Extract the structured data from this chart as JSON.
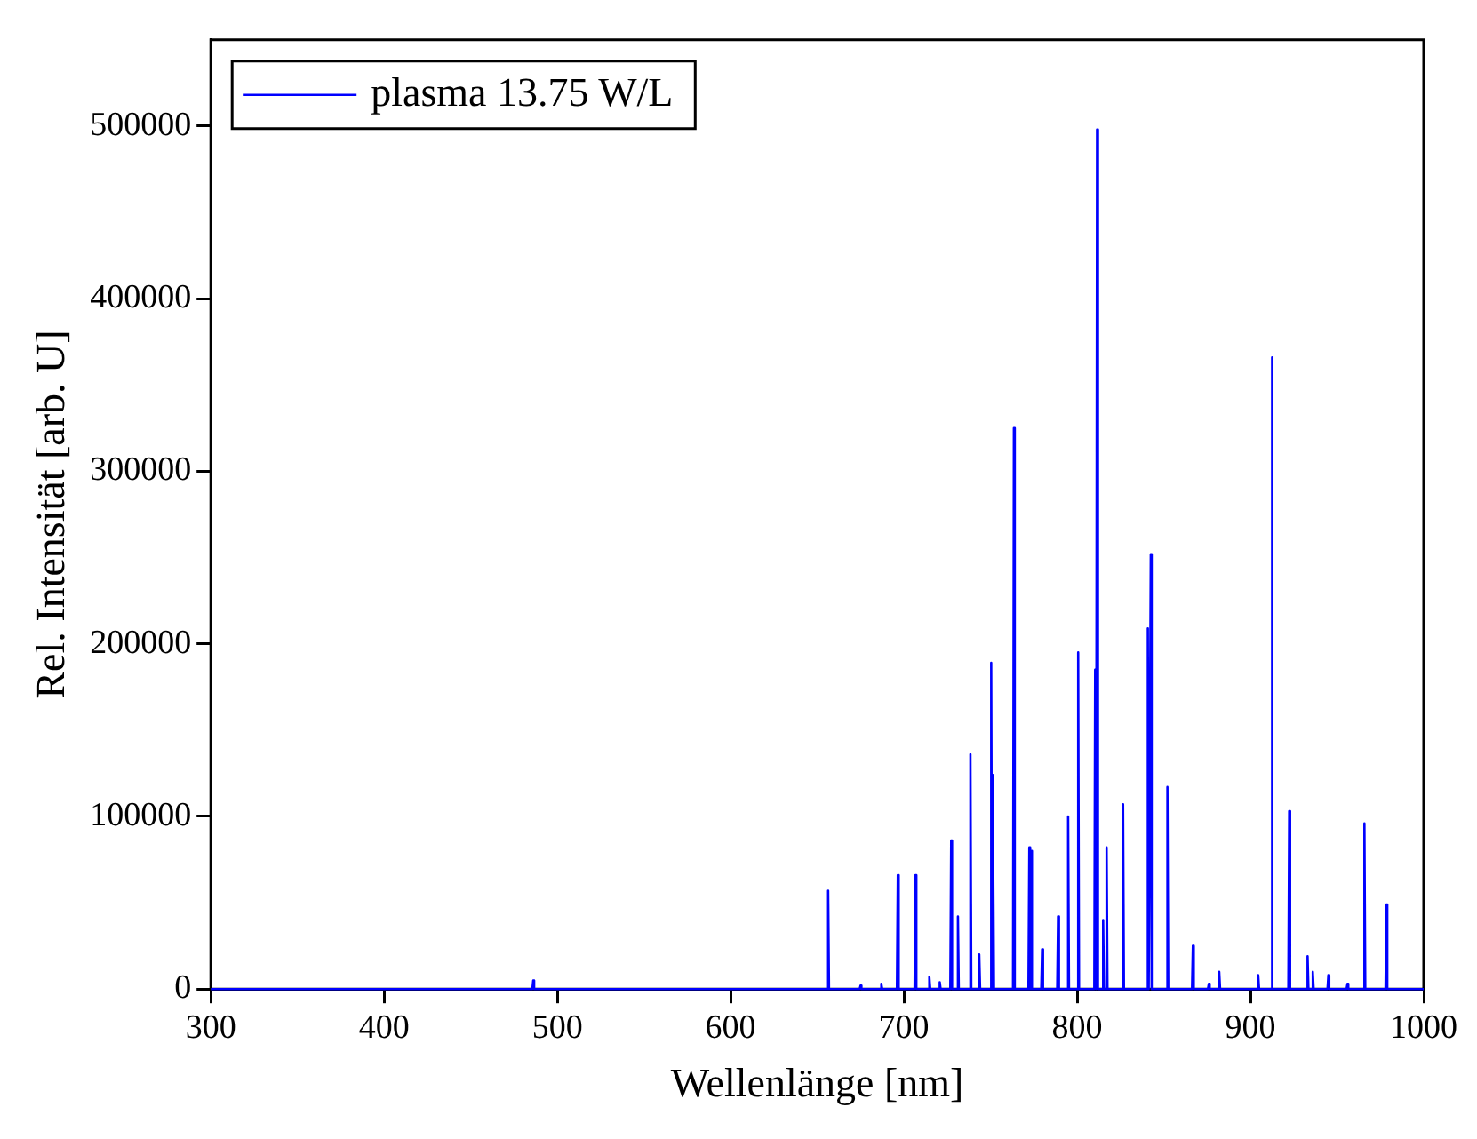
{
  "chart_data": {
    "type": "line",
    "xlabel": "Wellenlänge [nm]",
    "ylabel": "Rel. Intensität [arb. U]",
    "xlim": [
      300,
      1000
    ],
    "xticks": [
      300,
      400,
      500,
      600,
      700,
      800,
      900,
      1000
    ],
    "ylim": [
      0,
      550000
    ],
    "yticks": [
      0,
      100000,
      200000,
      300000,
      400000,
      500000
    ],
    "legend": "top left",
    "grid": false,
    "marker": "none",
    "line_style": "solid",
    "series": [
      {
        "name": "plasma 13.75 W/L",
        "color": "#0000ff",
        "x": [
          300,
          485.6,
          486.1,
          486.6,
          655.8,
          656.3,
          656.8,
          674.5,
          675,
          675.5,
          686.5,
          687,
          687.5,
          696,
          696.5,
          697,
          706.2,
          706.7,
          707.2,
          714.2,
          714.7,
          715.2,
          720.2,
          720.7,
          721.2,
          726.8,
          727.3,
          727.8,
          730.7,
          731.2,
          731.7,
          737.9,
          738.4,
          738.9,
          743,
          743.5,
          744,
          749.9,
          750.4,
          750.9,
          751,
          751.5,
          752,
          763,
          763.5,
          764,
          771.9,
          772.4,
          772.9,
          773.4,
          773.9,
          779.3,
          779.8,
          780.3,
          788.5,
          789,
          789.5,
          794.3,
          794.8,
          795.3,
          800.1,
          800.6,
          801.1,
          809.9,
          810.4,
          810.9,
          811,
          811.5,
          812,
          814.5,
          815,
          815.5,
          816.5,
          817,
          817.5,
          826,
          826.5,
          827,
          840.3,
          840.8,
          841.3,
          842,
          842.5,
          843,
          851.6,
          852.1,
          852.6,
          866.3,
          866.8,
          867.3,
          875.5,
          876,
          876.5,
          881.5,
          882,
          882.5,
          904,
          904.5,
          905,
          911.8,
          912.3,
          912.8,
          921.9,
          922.4,
          922.9,
          932.5,
          933,
          933.5,
          935.5,
          936,
          936.5,
          944.5,
          945,
          945.5,
          955.5,
          956,
          956.5,
          965.3,
          965.8,
          966.3,
          978,
          978.5,
          979,
          1000
        ],
        "values": [
          0,
          0,
          5000,
          0,
          0,
          57000,
          0,
          0,
          2000,
          0,
          0,
          3000,
          0,
          0,
          66000,
          0,
          0,
          66000,
          0,
          0,
          7000,
          0,
          0,
          4000,
          0,
          0,
          86000,
          0,
          0,
          42000,
          0,
          0,
          136000,
          0,
          0,
          20000,
          0,
          0,
          189000,
          0,
          0,
          124000,
          0,
          0,
          325000,
          0,
          0,
          82000,
          0,
          80000,
          0,
          0,
          23000,
          0,
          0,
          42000,
          0,
          0,
          100000,
          0,
          0,
          195000,
          0,
          0,
          185000,
          0,
          0,
          498000,
          0,
          0,
          40000,
          0,
          0,
          82000,
          0,
          0,
          107000,
          0,
          0,
          209000,
          0,
          0,
          252000,
          0,
          0,
          117000,
          0,
          0,
          25000,
          0,
          0,
          3000,
          0,
          0,
          10000,
          0,
          0,
          8000,
          0,
          0,
          366000,
          0,
          0,
          103000,
          0,
          0,
          19000,
          0,
          0,
          10000,
          0,
          0,
          8000,
          0,
          0,
          3000,
          0,
          0,
          96000,
          0,
          0,
          49000,
          0,
          0
        ]
      }
    ]
  }
}
